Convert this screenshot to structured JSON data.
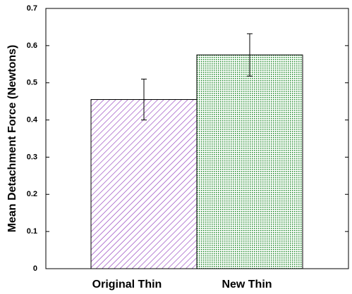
{
  "chart_data": {
    "type": "bar",
    "y_label": "Mean Detachment Force (Newtons)",
    "categories": [
      "Original Thin",
      "New Thin"
    ],
    "values": [
      0.455,
      0.575
    ],
    "errors": [
      0.055,
      0.057
    ],
    "colors": [
      "#8a2fb8",
      "#1f8a2a"
    ],
    "ylim": [
      0,
      0.7
    ],
    "yticks": [
      0,
      0.1,
      0.2,
      0.3,
      0.4,
      0.5,
      0.6,
      0.7
    ]
  }
}
